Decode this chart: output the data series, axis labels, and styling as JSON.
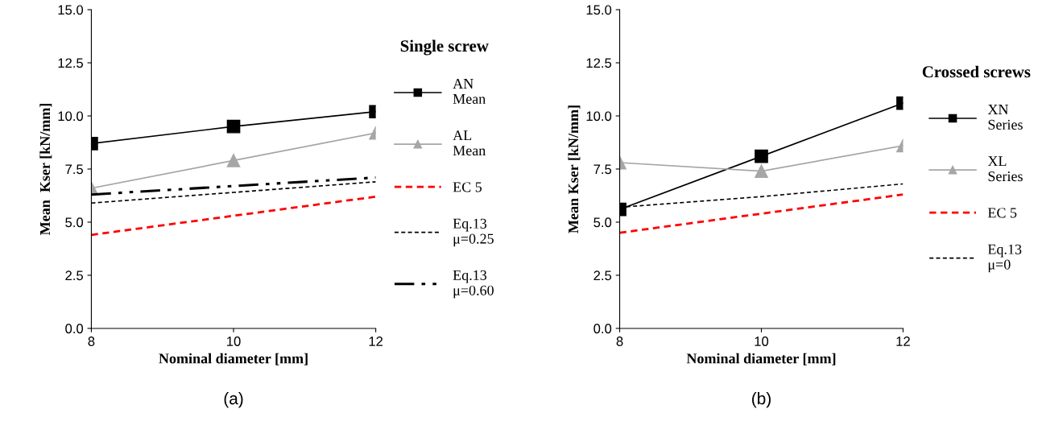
{
  "chart_data": [
    {
      "type": "line",
      "xlabel": "Nominal diameter [mm]",
      "ylabel": "Mean  Kser [kN/mm]",
      "legend_title": "Single screw",
      "legend": "right",
      "grid": false,
      "x": [
        8,
        10,
        12
      ],
      "xlim": [
        8,
        12
      ],
      "xticks": [
        8,
        10,
        12
      ],
      "ylim": [
        0,
        15
      ],
      "yticks": [
        {
          "value": 0,
          "label": "0.0"
        },
        {
          "value": 2.5,
          "label": "2.5"
        },
        {
          "value": 5,
          "label": "5.0"
        },
        {
          "value": 7.5,
          "label": "7.5"
        },
        {
          "value": 10,
          "label": "10.0"
        },
        {
          "value": 12.5,
          "label": "12.5"
        },
        {
          "value": 15,
          "label": "15.0"
        }
      ],
      "annotations": [
        "(a)"
      ],
      "series": [
        {
          "name": "AN\nMean",
          "color": "#000000",
          "values": [
            8.7,
            9.5,
            10.2
          ],
          "marker": "square",
          "line_style": "solid"
        },
        {
          "name": "AL\nMean",
          "color": "#a6a6a6",
          "values": [
            6.6,
            7.9,
            9.2
          ],
          "marker": "triangle",
          "line_style": "solid"
        },
        {
          "name": "EC 5",
          "color": "#ff0000",
          "values": [
            4.4,
            5.3,
            6.2
          ],
          "marker": "none",
          "line_style": "dashed"
        },
        {
          "name": "Eq.13\nμ=0.25",
          "color": "#000000",
          "values": [
            5.9,
            6.4,
            6.9
          ],
          "marker": "none",
          "line_style": "dashed"
        },
        {
          "name": "Eq.13\nμ=0.60",
          "color": "#000000",
          "values": [
            6.3,
            6.7,
            7.1
          ],
          "marker": "none",
          "line_style": "dashdotdot"
        }
      ]
    },
    {
      "type": "line",
      "xlabel": "Nominal diameter [mm]",
      "ylabel": "Mean Kser [kN/mm]",
      "legend_title": "Crossed screws",
      "legend": "right",
      "grid": false,
      "x": [
        8,
        10,
        12
      ],
      "xlim": [
        8,
        12
      ],
      "xticks": [
        8,
        10,
        12
      ],
      "ylim": [
        0,
        15
      ],
      "yticks": [
        {
          "value": 0,
          "label": "0.0"
        },
        {
          "value": 2.5,
          "label": "2.5"
        },
        {
          "value": 5,
          "label": "5.0"
        },
        {
          "value": 7.5,
          "label": "7.5"
        },
        {
          "value": 10,
          "label": "10.0"
        },
        {
          "value": 12.5,
          "label": "12.5"
        },
        {
          "value": 15,
          "label": "15.0"
        }
      ],
      "annotations": [
        "(b)"
      ],
      "series": [
        {
          "name": "XN\nSeries",
          "color": "#000000",
          "values": [
            5.6,
            8.1,
            10.6
          ],
          "marker": "square",
          "line_style": "solid"
        },
        {
          "name": "XL\nSeries",
          "color": "#a6a6a6",
          "values": [
            7.8,
            7.4,
            8.6
          ],
          "marker": "triangle",
          "line_style": "solid"
        },
        {
          "name": "EC 5",
          "color": "#ff0000",
          "values": [
            4.5,
            5.4,
            6.3
          ],
          "marker": "none",
          "line_style": "dashed"
        },
        {
          "name": "Eq.13\nμ=0",
          "color": "#000000",
          "values": [
            5.7,
            6.2,
            6.8
          ],
          "marker": "none",
          "line_style": "dashed"
        }
      ]
    }
  ]
}
